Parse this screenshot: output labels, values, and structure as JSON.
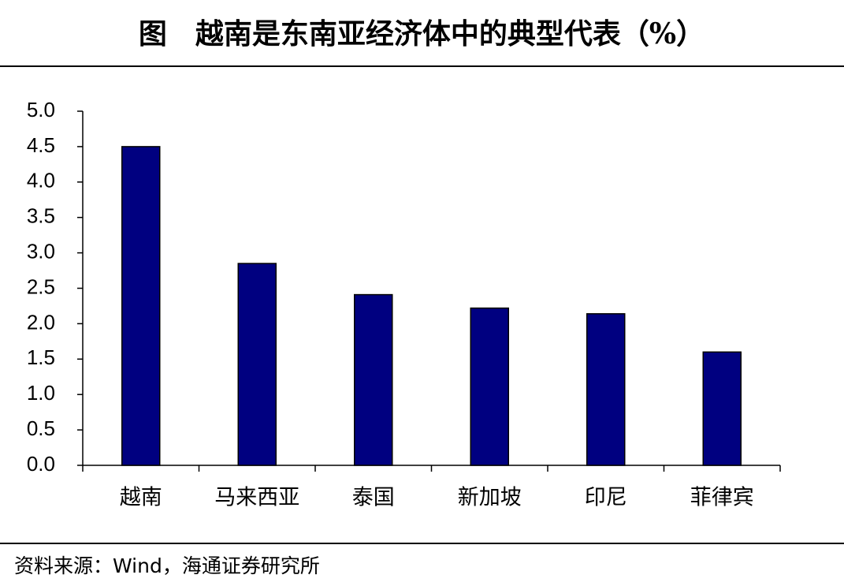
{
  "chart_data": {
    "type": "bar",
    "title": "图　越南是东南亚经济体中的典型代表（%）",
    "source": "资料来源：Wind，海通证券研究所",
    "categories": [
      "越南",
      "马来西亚",
      "泰国",
      "新加坡",
      "印尼",
      "菲律宾"
    ],
    "values": [
      4.5,
      2.85,
      2.41,
      2.22,
      2.14,
      1.6
    ],
    "color": "#000080",
    "ylim": [
      0,
      5
    ],
    "yticks": [
      {
        "value": 0,
        "label": "0.0"
      },
      0.5,
      {
        "value": 1,
        "label": "1.0"
      },
      1.5,
      {
        "value": 2,
        "label": "2.0"
      },
      2.5,
      {
        "value": 3,
        "label": "3.0"
      },
      3.5,
      {
        "value": 4,
        "label": "4.0"
      },
      4.5,
      {
        "value": 5,
        "label": "5.0"
      }
    ],
    "grid": false
  }
}
